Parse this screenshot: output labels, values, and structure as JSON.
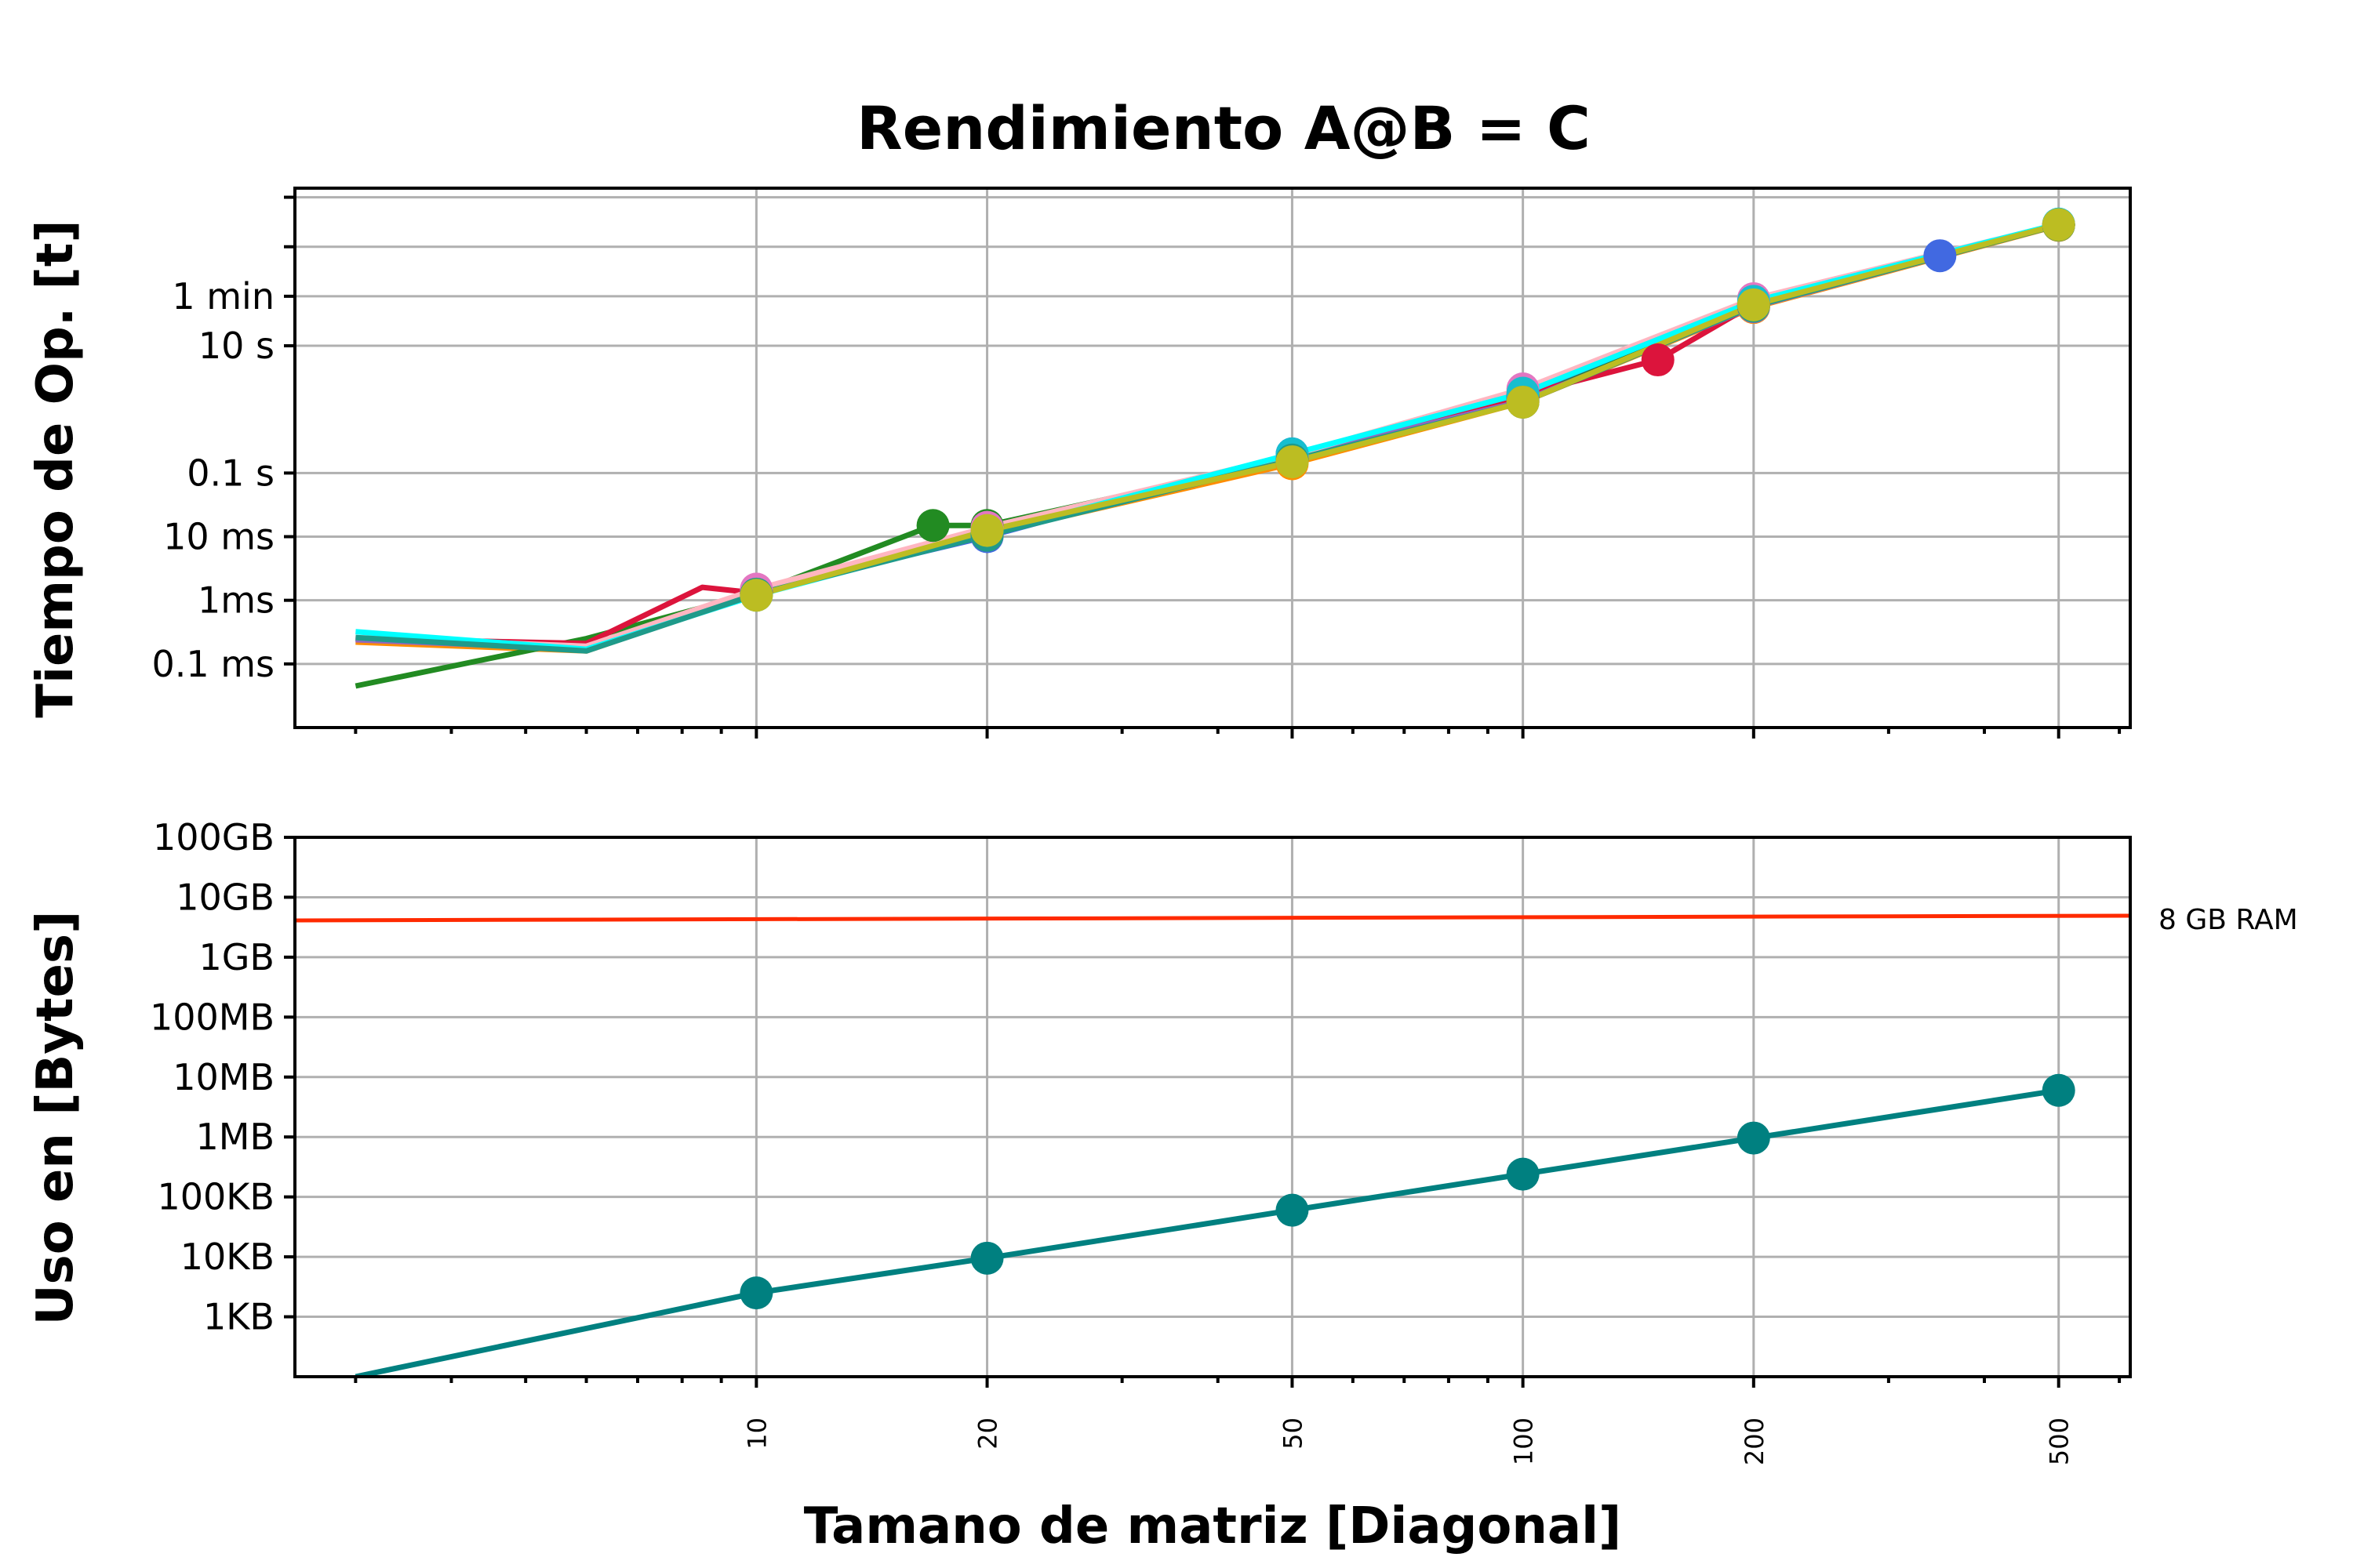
{
  "chart_data": [
    {
      "type": "line",
      "title": "Rendimiento A@B = C",
      "ylabel": "Tiempo de Op. [t]",
      "xlabel": "",
      "xscale": "log",
      "yscale": "log",
      "xlim": [
        2.5,
        620
      ],
      "ylim": [
        1e-05,
        3000
      ],
      "grid": true,
      "yticks": [
        {
          "value": 0.0001,
          "label": "0.1 ms"
        },
        {
          "value": 0.001,
          "label": "1ms"
        },
        {
          "value": 0.01,
          "label": "10 ms"
        },
        {
          "value": 0.1,
          "label": "0.1 s"
        },
        {
          "value": 10,
          "label": "10 s"
        },
        {
          "value": 60,
          "label": "1 min"
        },
        {
          "value": 360,
          "label": ""
        },
        {
          "value": 2160,
          "label": ""
        }
      ],
      "series": [
        {
          "color": "#4169e1",
          "marker_color": "#4169e1",
          "x": [
            3,
            6,
            10,
            20,
            50,
            100,
            200,
            350,
            500
          ],
          "y": [
            0.00025,
            0.00018,
            0.0014,
            0.01,
            0.2,
            1.6,
            45,
            260,
            800
          ]
        },
        {
          "color": "#ff8c00",
          "marker_color": "#ff8c00",
          "x": [
            3,
            6,
            10,
            20,
            50,
            100,
            200,
            500
          ],
          "y": [
            0.00022,
            0.00016,
            0.0013,
            0.011,
            0.14,
            1.3,
            40,
            780
          ]
        },
        {
          "color": "#228b22",
          "marker_color": "#228b22",
          "x": [
            3,
            6,
            10,
            17,
            20,
            50,
            100,
            200,
            500
          ],
          "y": [
            4.5e-05,
            0.00025,
            0.0013,
            0.015,
            0.015,
            0.17,
            1.4,
            42,
            790
          ]
        },
        {
          "color": "#dc143c",
          "marker_color": "#dc143c",
          "x": [
            3,
            6,
            8.5,
            10,
            20,
            50,
            100,
            150,
            200,
            500
          ],
          "y": [
            0.00025,
            0.00021,
            0.0016,
            0.0013,
            0.011,
            0.16,
            1.7,
            6,
            45,
            800
          ]
        },
        {
          "color": "#9467bd",
          "marker_color": "#9467bd",
          "x": [
            3,
            6,
            10,
            20,
            50,
            100,
            200,
            500
          ],
          "y": [
            0.00024,
            0.00017,
            0.0013,
            0.0105,
            0.18,
            1.35,
            41,
            800
          ]
        },
        {
          "color": "#ffb6c1",
          "marker_color": "#e377c2",
          "x": [
            3,
            6,
            10,
            20,
            50,
            100,
            200,
            500
          ],
          "y": [
            0.00026,
            0.00019,
            0.0015,
            0.014,
            0.19,
            2.1,
            55,
            810
          ]
        },
        {
          "color": "#00ffff",
          "marker_color": "#17becf",
          "x": [
            3,
            6,
            10,
            20,
            50,
            100,
            200,
            500
          ],
          "y": [
            0.00032,
            0.00017,
            0.0012,
            0.0112,
            0.2,
            1.8,
            50,
            820
          ]
        },
        {
          "color": "#1f9a8a",
          "marker_color": "#1f9a8a",
          "x": [
            3,
            6,
            10,
            20,
            50,
            100,
            200,
            500
          ],
          "y": [
            0.00026,
            0.00016,
            0.00125,
            0.0105,
            0.16,
            1.3,
            42,
            790
          ]
        },
        {
          "color": "#bcbd22",
          "marker_color": "#bcbd22",
          "x": [
            10,
            20,
            50,
            100,
            200,
            500
          ],
          "y": [
            0.0012,
            0.0125,
            0.15,
            1.3,
            44,
            800
          ]
        }
      ]
    },
    {
      "type": "line",
      "ylabel": "Uso en [Bytes]",
      "xlabel": "Tamano de matriz [Diagonal]",
      "xscale": "log",
      "yscale": "log",
      "xlim": [
        2.5,
        620
      ],
      "ylim": [
        100,
        100000000000
      ],
      "grid": true,
      "xticks": [
        10,
        20,
        50,
        100,
        200,
        500
      ],
      "yticks": [
        {
          "value": 1000,
          "label": "1KB"
        },
        {
          "value": 10000,
          "label": "10KB"
        },
        {
          "value": 100000,
          "label": "100KB"
        },
        {
          "value": 1000000,
          "label": "1MB"
        },
        {
          "value": 10000000,
          "label": "10MB"
        },
        {
          "value": 100000000,
          "label": "100MB"
        },
        {
          "value": 1000000000,
          "label": "1GB"
        },
        {
          "value": 10000000000,
          "label": "10GB"
        },
        {
          "value": 100000000000,
          "label": "100GB"
        }
      ],
      "series": [
        {
          "color": "#008080",
          "marker_color": "#008080",
          "x": [
            3,
            10,
            20,
            50,
            100,
            200,
            500
          ],
          "y": [
            100,
            2500,
            9500,
            60000,
            240000,
            960000,
            6000000
          ],
          "markers_from_index": 1
        }
      ],
      "hline": {
        "value": 4500000000,
        "color": "#ff2a00",
        "label": "8 GB RAM"
      }
    }
  ]
}
